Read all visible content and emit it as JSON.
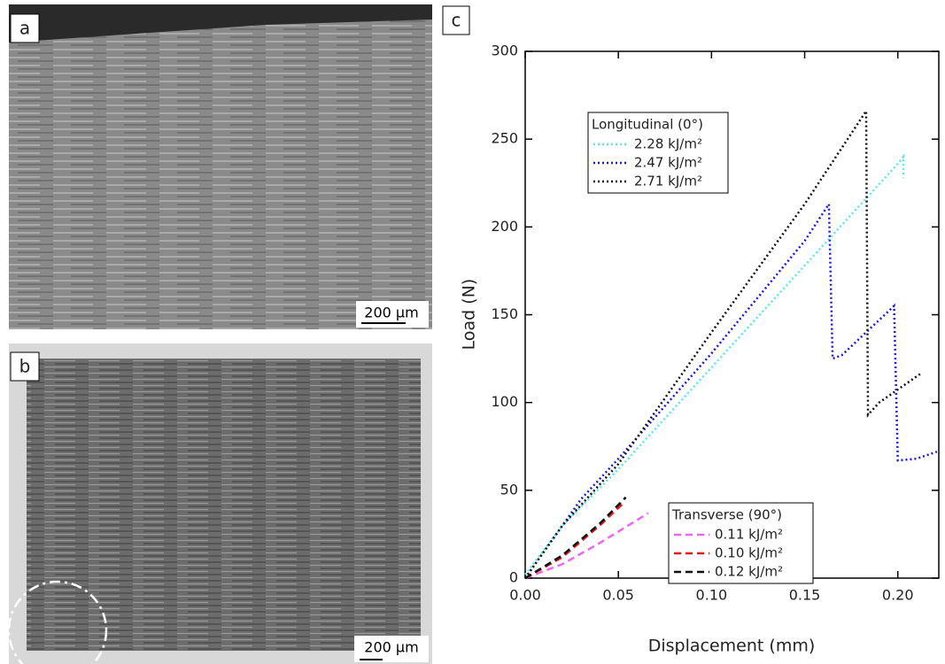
{
  "panels": [
    {
      "label": "a",
      "scale_bar": "200 μm"
    },
    {
      "label": "b",
      "scale_bar": "200 μm"
    }
  ],
  "chart_data": {
    "type": "line",
    "label": "c",
    "xlabel": "Displacement (mm)",
    "ylabel": "Load (N)",
    "xlim": [
      0,
      0.222
    ],
    "ylim": [
      0,
      300
    ],
    "xticks": [
      {
        "value": 0,
        "label": "0.00"
      },
      {
        "value": 0.05,
        "label": "0.05"
      },
      {
        "value": 0.1,
        "label": "0.10"
      },
      {
        "value": 0.15,
        "label": "0.15"
      },
      {
        "value": 0.2,
        "label": "0.20"
      }
    ],
    "yticks": [
      0,
      50,
      100,
      150,
      200,
      250,
      300
    ],
    "legends": [
      {
        "title": "Longitudinal (0°)",
        "style": "dotted"
      },
      {
        "title": "Transverse (90°)",
        "style": "dashed"
      }
    ],
    "series": [
      {
        "name": "2.28 kJ/m²",
        "color": "#5fe3f0",
        "style": "dotted",
        "x": [
          0,
          0.02,
          0.05,
          0.1,
          0.15,
          0.2,
          0.203,
          0.203
        ],
        "values": [
          2,
          30,
          62,
          120,
          178,
          236,
          240,
          228
        ]
      },
      {
        "name": "2.47 kJ/m²",
        "color": "#1a1adc",
        "style": "dotted",
        "x": [
          0,
          0.02,
          0.03,
          0.05,
          0.1,
          0.15,
          0.163,
          0.165,
          0.17,
          0.19,
          0.198,
          0.2,
          0.21,
          0.221
        ],
        "values": [
          0,
          30,
          45,
          68,
          128,
          192,
          213,
          125,
          127,
          147,
          155,
          67,
          68,
          72
        ]
      },
      {
        "name": "2.71 kJ/m²",
        "color": "#111111",
        "style": "dotted",
        "x": [
          0,
          0.02,
          0.05,
          0.1,
          0.15,
          0.183,
          0.184,
          0.19,
          0.213
        ],
        "values": [
          0,
          30,
          65,
          140,
          213,
          266,
          93,
          100,
          117
        ]
      },
      {
        "name": "0.11 kJ/m²",
        "color": "#ee66ee",
        "style": "dashed",
        "x": [
          0,
          0.02,
          0.04,
          0.066
        ],
        "values": [
          0,
          8,
          20,
          37
        ]
      },
      {
        "name": "0.10 kJ/m²",
        "color": "#e8161b",
        "style": "dashed",
        "x": [
          0,
          0.02,
          0.04,
          0.052
        ],
        "values": [
          0,
          12,
          30,
          42
        ]
      },
      {
        "name": "0.12 kJ/m²",
        "color": "#111111",
        "style": "dashed",
        "x": [
          0,
          0.02,
          0.04,
          0.054
        ],
        "values": [
          0,
          13,
          31,
          46
        ]
      }
    ]
  }
}
